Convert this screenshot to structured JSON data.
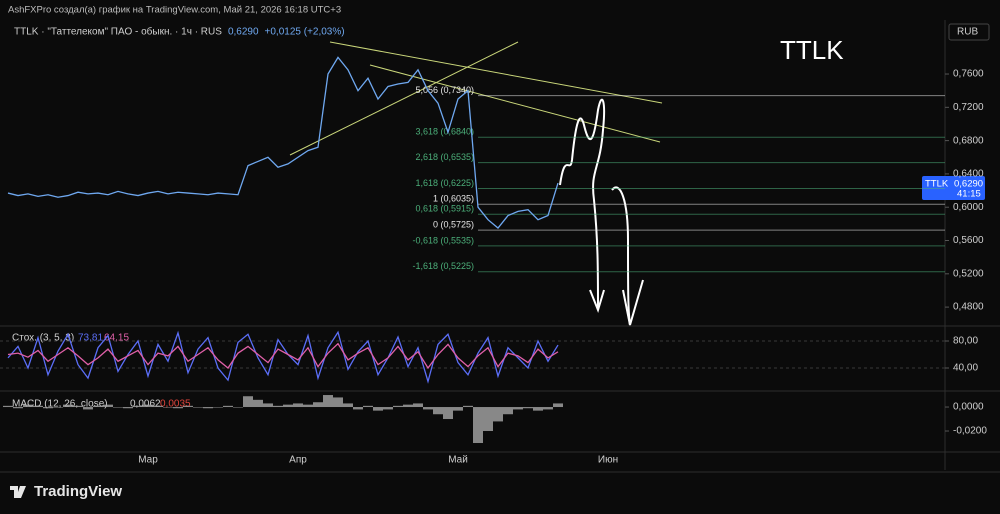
{
  "header": {
    "author_line": "AshFXPro создал(а) график на TradingView.com, Май 21, 2026 16:18 UTC+3",
    "currency": "RUB",
    "watermark": "TTLK"
  },
  "price_tag": {
    "symbol": "TTLK",
    "price": "0,6290",
    "countdown": "41:15"
  },
  "footer": {
    "brand": "TradingView"
  },
  "chart_data": [
    {
      "type": "line",
      "title": "TTLK · \"Таттелеком\" ПАО - обыкн. · 1ч · RUS",
      "last_price": "0,6290",
      "change": "+0,0125 (+2,03%)",
      "color": "#6fa8f0",
      "categories": [
        null,
        null,
        null,
        null,
        null,
        null,
        null,
        null,
        null,
        null,
        null,
        null,
        null,
        null,
        "Мар",
        null,
        null,
        null,
        null,
        null,
        null,
        null,
        null,
        null,
        null,
        null,
        null,
        null,
        null,
        "Апр",
        null,
        null,
        null,
        null,
        null,
        null,
        null,
        null,
        null,
        null,
        null,
        null,
        null,
        null,
        null,
        "Май",
        null,
        null,
        null,
        null,
        null,
        null,
        null,
        null,
        null,
        null,
        null,
        null,
        null,
        null,
        "Июн",
        null,
        null,
        null,
        null,
        null,
        null,
        null,
        null,
        null,
        null,
        null,
        null,
        null,
        null,
        null,
        null,
        null,
        null,
        null,
        null,
        null,
        null,
        null,
        null,
        null,
        null,
        null,
        null,
        null,
        null,
        null,
        null,
        null
      ],
      "values": [
        0.617,
        0.614,
        0.616,
        0.613,
        0.615,
        0.612,
        0.614,
        0.618,
        0.616,
        0.617,
        0.615,
        0.619,
        0.616,
        0.614,
        0.617,
        0.619,
        0.616,
        0.618,
        0.617,
        0.616,
        0.615,
        0.617,
        0.616,
        0.615,
        0.65,
        0.655,
        0.66,
        0.648,
        0.652,
        0.66,
        0.668,
        0.672,
        0.76,
        0.78,
        0.765,
        0.74,
        0.755,
        0.73,
        0.745,
        0.748,
        0.75,
        0.765,
        0.74,
        0.725,
        0.69,
        0.73,
        0.74,
        0.6,
        0.585,
        0.575,
        0.59,
        0.595,
        0.597,
        0.585,
        0.59,
        0.629,
        null,
        null,
        null,
        null,
        null,
        null,
        null,
        null,
        null,
        null,
        null,
        null,
        null,
        null,
        null,
        null,
        null,
        null,
        null,
        null,
        null,
        null,
        null,
        null,
        null,
        null,
        null,
        null,
        null,
        null,
        null,
        null,
        null,
        null,
        null,
        null,
        null,
        null
      ],
      "ylim": [
        0.4585,
        0.8225
      ],
      "yticks": [
        {
          "value": 0.76,
          "label": "0,7600"
        },
        {
          "value": 0.72,
          "label": "0,7200"
        },
        {
          "value": 0.68,
          "label": "0,6800"
        },
        {
          "value": 0.64,
          "label": "0,6400"
        },
        {
          "value": 0.6,
          "label": "0,6000"
        },
        {
          "value": 0.56,
          "label": "0,5600"
        },
        {
          "value": 0.52,
          "label": "0,5200"
        },
        {
          "value": 0.48,
          "label": "0,4800"
        }
      ],
      "fib_levels": [
        {
          "label": "5,056 (0,7340)",
          "value": 0.734,
          "color": "#e6e6e6"
        },
        {
          "label": "3,618 (0,6840)",
          "value": 0.684,
          "color": "#4caf7a"
        },
        {
          "label": "2,618 (0,6535)",
          "value": 0.6535,
          "color": "#4caf7a"
        },
        {
          "label": "1,618 (0,6225)",
          "value": 0.6225,
          "color": "#4caf7a"
        },
        {
          "label": "1 (0,6035)",
          "value": 0.6035,
          "color": "#e6e6e6"
        },
        {
          "label": "0,618 (0,5915)",
          "value": 0.5915,
          "color": "#4caf7a"
        },
        {
          "label": "0 (0,5725)",
          "value": 0.5725,
          "color": "#e6e6e6"
        },
        {
          "label": "-0,618 (0,5535)",
          "value": 0.5535,
          "color": "#4caf7a"
        },
        {
          "label": "-1,618 (0,5225)",
          "value": 0.5225,
          "color": "#4caf7a"
        }
      ]
    },
    {
      "type": "line",
      "title": "Стох. (3, 5, 3)",
      "series": [
        {
          "last": "73,81",
          "color": "#5b6ef7",
          "values": [
            55,
            72,
            40,
            85,
            30,
            65,
            90,
            45,
            25,
            70,
            88,
            35,
            60,
            80,
            28,
            75,
            50,
            92,
            33,
            68,
            85,
            40,
            22,
            78,
            90,
            55,
            30,
            82,
            60,
            45,
            88,
            25,
            70,
            93,
            38,
            64,
            80,
            30,
            55,
            86,
            42,
            70,
            20,
            75,
            90,
            48,
            30,
            62,
            85,
            28,
            70,
            55,
            40,
            80,
            50,
            74
          ]
        },
        {
          "last": "64,15",
          "color": "#e060a8",
          "values": [
            60,
            62,
            56,
            66,
            50,
            60,
            70,
            58,
            45,
            55,
            68,
            50,
            58,
            66,
            45,
            62,
            58,
            72,
            50,
            60,
            70,
            52,
            40,
            62,
            72,
            60,
            48,
            68,
            60,
            52,
            70,
            42,
            62,
            76,
            52,
            62,
            70,
            45,
            55,
            72,
            52,
            64,
            40,
            60,
            75,
            55,
            42,
            58,
            70,
            42,
            62,
            58,
            48,
            68,
            55,
            64
          ]
        }
      ],
      "ylim": [
        7.4,
        96.3
      ],
      "yticks": [
        {
          "value": 80,
          "label": "80,00"
        },
        {
          "value": 40,
          "label": "40,00"
        }
      ]
    },
    {
      "type": "bar",
      "title": "MACD (12, 26, close)",
      "last_values": [
        "0,0062",
        "0,0035"
      ],
      "color": "#a8a8a8",
      "values": [
        0.001,
        -0.001,
        0.002,
        0.001,
        -0.001,
        0,
        0.002,
        0.001,
        -0.002,
        0.001,
        0.002,
        0,
        -0.001,
        0.001,
        0.002,
        0.001,
        0,
        -0.001,
        0.001,
        0,
        -0.001,
        0,
        0.001,
        0,
        0.009,
        0.006,
        0.003,
        0.001,
        0.002,
        0.003,
        0.002,
        0.004,
        0.01,
        0.008,
        0.003,
        -0.002,
        0.001,
        -0.003,
        -0.002,
        0.001,
        0.002,
        0.003,
        -0.002,
        -0.006,
        -0.01,
        -0.003,
        0.001,
        -0.03,
        -0.02,
        -0.012,
        -0.006,
        -0.002,
        -0.001,
        -0.003,
        -0.002,
        0.003
      ],
      "ylim": [
        -0.0375,
        0.0117
      ],
      "yticks": [
        {
          "value": 0,
          "label": "0,0000"
        },
        {
          "value": -0.02,
          "label": "-0,0200"
        }
      ]
    }
  ]
}
